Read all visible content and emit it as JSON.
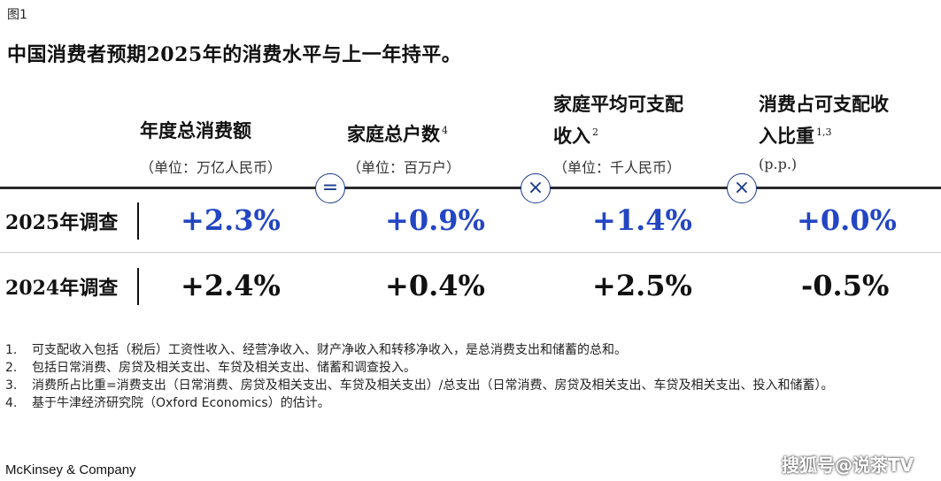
{
  "figure_label": "图1",
  "title": "中国消费者预期2025年的消费水平与上一年持平。",
  "columns": [
    {
      "line1": "年度总消费额",
      "line2": "",
      "sup": "",
      "unit": "（单位：万亿人民币）"
    },
    {
      "line1": "家庭总户数",
      "line2": "",
      "sup": "4",
      "unit": "（单位：百万户）"
    },
    {
      "line1": "家庭平均可支配",
      "line2": "收入",
      "sup": "2",
      "unit": "（单位：千人民币）"
    },
    {
      "line1": "消费占可支配收",
      "line2": "入比重",
      "sup": "1,3",
      "unit": "(p.p.)"
    }
  ],
  "operators": [
    "=",
    "×",
    "×"
  ],
  "rows": [
    {
      "label": "2025年调查",
      "values": [
        "+2.3%",
        "+0.9%",
        "+1.4%",
        "+0.0%"
      ]
    },
    {
      "label": "2024年调查",
      "values": [
        "+2.4%",
        "+0.4%",
        "+2.5%",
        "-0.5%"
      ]
    }
  ],
  "notes": [
    {
      "num": "1.",
      "text": "可支配收入包括（税后）工资性收入、经营净收入、财产净收入和转移净收入，是总消费支出和储蓄的总和。"
    },
    {
      "num": "2.",
      "text": "包括日常消费、房贷及相关支出、车贷及相关支出、储蓄和调查投入。"
    },
    {
      "num": "3.",
      "text": "消费所占比重=消费支出（日常消费、房贷及相关支出、车贷及相关支出）/总支出（日常消费、房贷及相关支出、车贷及相关支出、投入和储蓄）。"
    },
    {
      "num": "4.",
      "text": "基于牛津经济研究院（Oxford Economics）的估计。"
    }
  ],
  "brand": "McKinsey & Company",
  "watermark": "搜狐号@说茶TV",
  "colors": {
    "accent_blue": "#2346c2",
    "operator_blue": "#1b3a8c",
    "rule": "#2a2a2a"
  }
}
